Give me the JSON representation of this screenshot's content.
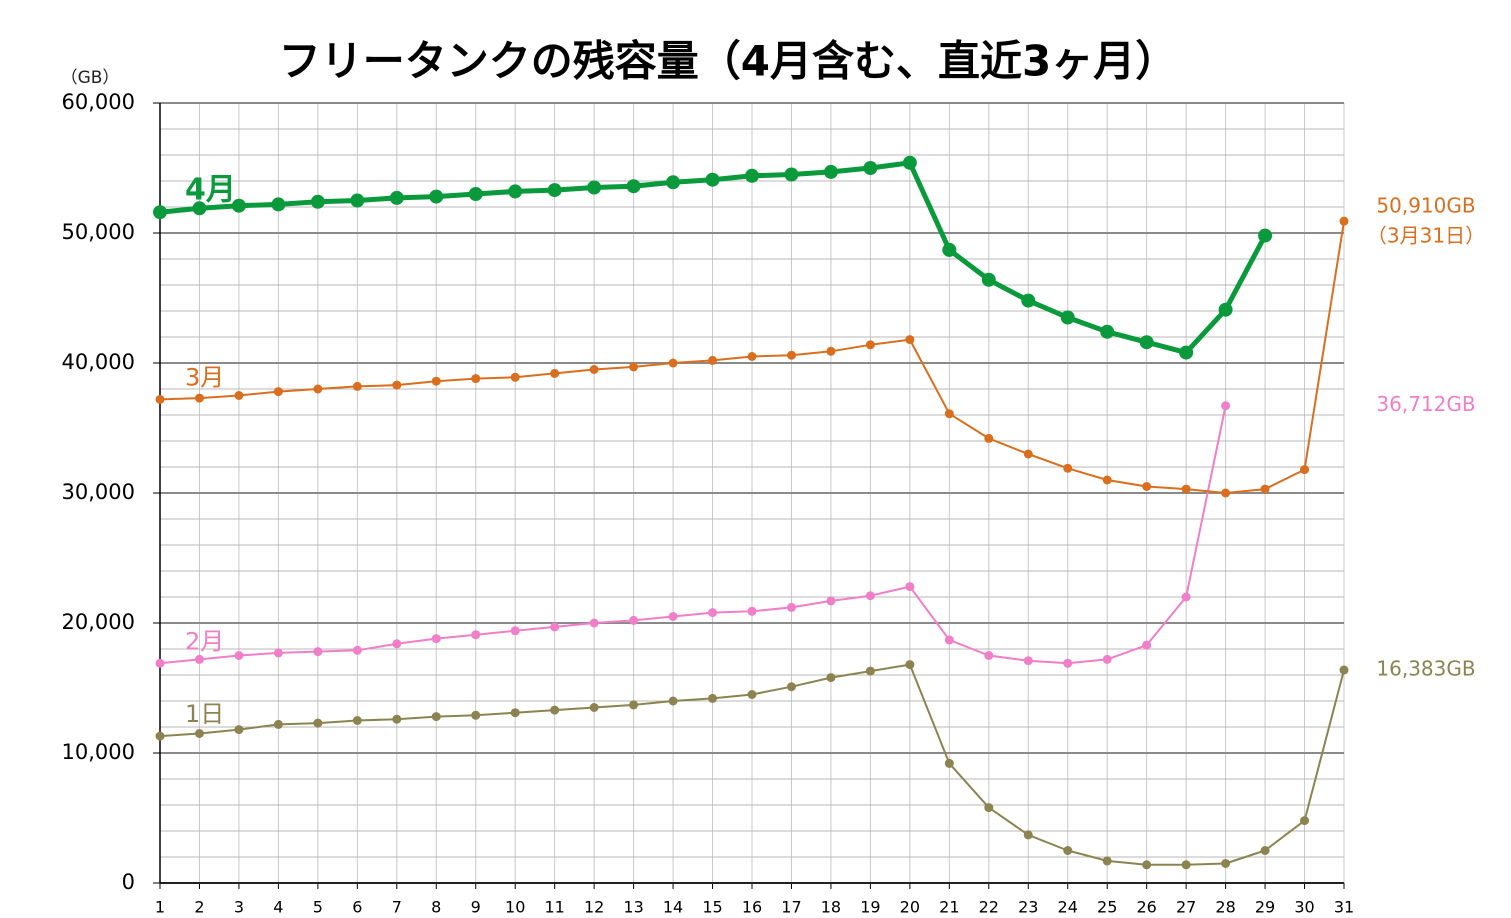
{
  "chart_data": {
    "type": "line",
    "title": "フリータンクの残容量（4月含む、直近3ヶ月）",
    "y_label": "（GB）",
    "x": [
      1,
      2,
      3,
      4,
      5,
      6,
      7,
      8,
      9,
      10,
      11,
      12,
      13,
      14,
      15,
      16,
      17,
      18,
      19,
      20,
      21,
      22,
      23,
      24,
      25,
      26,
      27,
      28,
      29,
      30,
      31
    ],
    "xlim": [
      1,
      31
    ],
    "xticks": [
      1,
      2,
      3,
      4,
      5,
      6,
      7,
      8,
      9,
      10,
      11,
      12,
      13,
      14,
      15,
      16,
      17,
      18,
      19,
      20,
      21,
      22,
      23,
      24,
      25,
      26,
      27,
      28,
      29,
      30,
      31
    ],
    "ylim": [
      0,
      60000
    ],
    "yticks": [
      0,
      {
        "value": 10000,
        "label": "10,000"
      },
      {
        "value": 20000,
        "label": "20,000"
      },
      {
        "value": 30000,
        "label": "30,000"
      },
      {
        "value": 40000,
        "label": "40,000"
      },
      {
        "value": 50000,
        "label": "50,000"
      },
      {
        "value": 60000,
        "label": "60,000"
      }
    ],
    "minor_yticks": [
      2000,
      4000,
      6000,
      8000,
      12000,
      14000,
      16000,
      18000,
      22000,
      24000,
      26000,
      28000,
      32000,
      34000,
      36000,
      38000,
      42000,
      44000,
      46000,
      48000,
      52000,
      54000,
      56000,
      58000
    ],
    "grid": true,
    "series": [
      {
        "name": "4月",
        "color": "#0a9a3c",
        "values": [
          51600,
          51900,
          52100,
          52200,
          52400,
          52500,
          52700,
          52800,
          53000,
          53200,
          53300,
          53500,
          53600,
          53900,
          54100,
          54400,
          54500,
          54700,
          55000,
          55400,
          48700,
          46400,
          44800,
          43500,
          42400,
          41600,
          40800,
          44100,
          49800,
          null,
          null
        ]
      },
      {
        "name": "3月",
        "color": "#d96f1e",
        "values": [
          37200,
          37300,
          37500,
          37800,
          38000,
          38200,
          38300,
          38600,
          38800,
          38900,
          39200,
          39500,
          39700,
          40000,
          40200,
          40500,
          40600,
          40900,
          41400,
          41800,
          36100,
          34200,
          33000,
          31900,
          31000,
          30500,
          30300,
          30000,
          30300,
          31800,
          50910
        ],
        "last_label": "50,910GB",
        "last_note": "（3月31日）"
      },
      {
        "name": "2月",
        "color": "#f07ec8",
        "values": [
          16900,
          17200,
          17500,
          17700,
          17800,
          17900,
          18400,
          18800,
          19100,
          19400,
          19700,
          20000,
          20200,
          20500,
          20800,
          20900,
          21200,
          21700,
          22100,
          22800,
          18700,
          17500,
          17100,
          16900,
          17200,
          18300,
          22000,
          36712,
          null,
          null,
          null
        ],
        "last_label": "36,712GB"
      },
      {
        "name": "1日",
        "color": "#8c8450",
        "values": [
          11300,
          11500,
          11800,
          12200,
          12300,
          12500,
          12600,
          12800,
          12900,
          13100,
          13300,
          13500,
          13700,
          14000,
          14200,
          14500,
          15100,
          15800,
          16300,
          16800,
          9200,
          5800,
          3700,
          2500,
          1700,
          1400,
          1400,
          1500,
          2500,
          4800,
          16383
        ],
        "last_label": "16,383GB"
      }
    ]
  }
}
